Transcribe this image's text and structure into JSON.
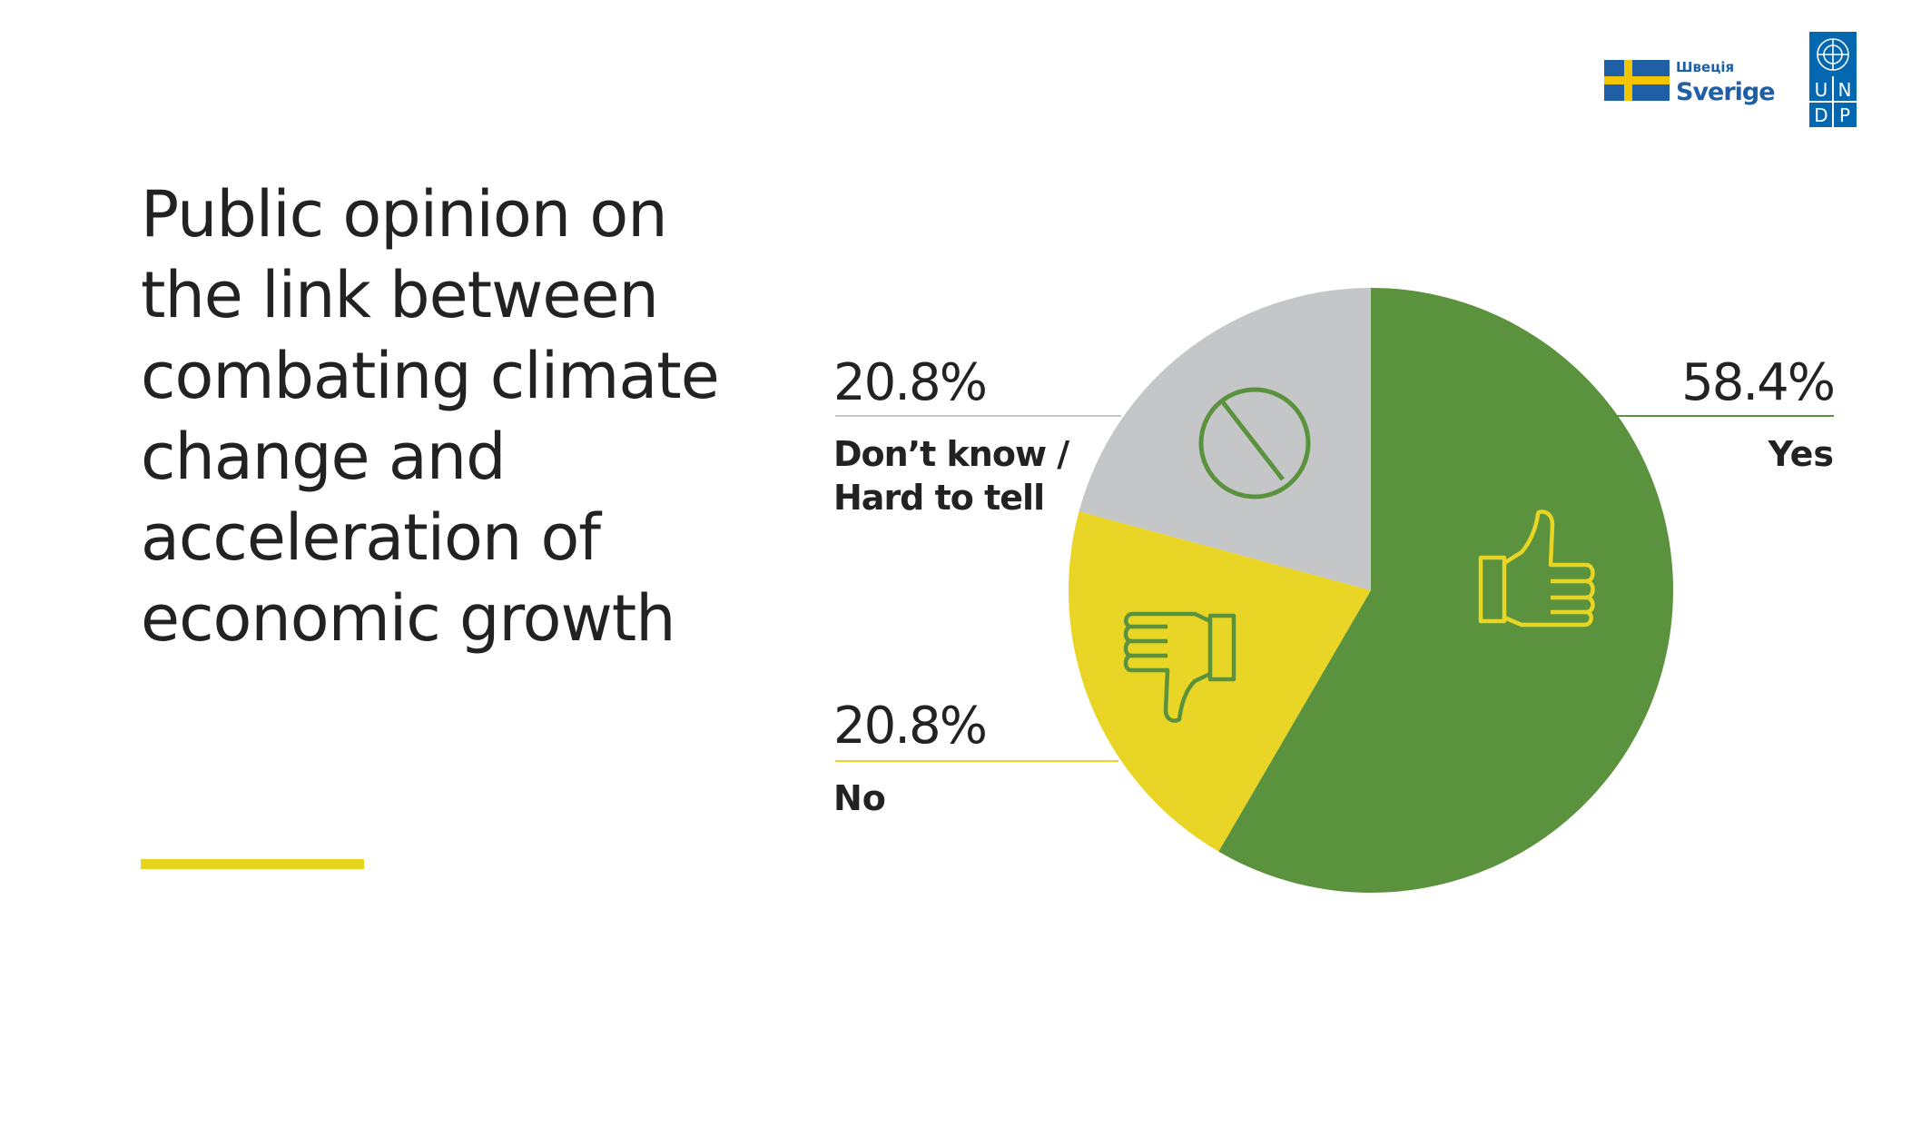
{
  "title": "Public opinion on the link between combating climate change and acceleration of economic growth",
  "logos": {
    "sweden_small": "Швеція",
    "sweden_large": "Sverige",
    "undp": [
      "U",
      "N",
      "D",
      "P"
    ]
  },
  "colors": {
    "yes": "#5b923e",
    "no": "#e8d525",
    "dont_know": "#c5c6c8",
    "accent_yellow": "#e6d41e",
    "undp_blue": "#0468b1",
    "sweden_blue": "#1f5fa6",
    "sweden_yellow": "#f2c500"
  },
  "chart_data": {
    "type": "pie",
    "title": "Public opinion on the link between combating climate change and acceleration of economic growth",
    "slices": [
      {
        "label": "Yes",
        "value": 58.4,
        "display": "58.4%",
        "color": "#5b923e",
        "icon": "thumbs-up-icon"
      },
      {
        "label": "No",
        "value": 20.8,
        "display": "20.8%",
        "color": "#e8d525",
        "icon": "thumbs-down-icon"
      },
      {
        "label": "Don’t know / Hard to tell",
        "lines": [
          "Don’t know /",
          "Hard to tell"
        ],
        "value": 20.8,
        "display": "20.8%",
        "color": "#c5c6c8",
        "icon": "prohibited-icon"
      }
    ]
  }
}
